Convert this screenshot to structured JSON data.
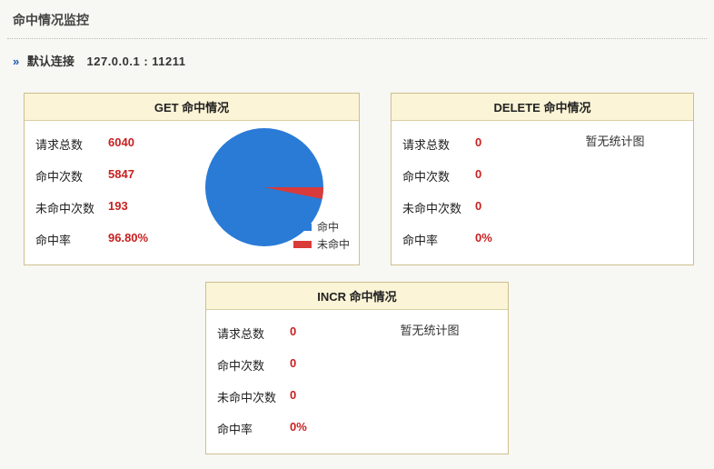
{
  "page_title": "命中情况监控",
  "connection": {
    "chevron": "»",
    "label": "默认连接",
    "address": "127.0.0.1 : 11211"
  },
  "metric_labels": {
    "requests": "请求总数",
    "hits": "命中次数",
    "misses": "未命中次数",
    "rate": "命中率"
  },
  "empty_chart_text": "暂无统计图",
  "panels": {
    "get": {
      "title": "GET 命中情况",
      "requests": "6040",
      "hits": "5847",
      "misses": "193",
      "rate": "96.80%",
      "chart": {
        "type": "pie",
        "size": 130,
        "hit_value": 5847,
        "miss_value": 193,
        "hit_color": "#2a7bd6",
        "miss_color": "#d93a3a",
        "background_color": "#ffffff",
        "legend": {
          "hit_label": "命中",
          "miss_label": "未命中"
        }
      }
    },
    "delete": {
      "title": "DELETE 命中情况",
      "requests": "0",
      "hits": "0",
      "misses": "0",
      "rate": "0%",
      "has_chart": false
    },
    "incr": {
      "title": "INCR 命中情况",
      "requests": "0",
      "hits": "0",
      "misses": "0",
      "rate": "0%",
      "has_chart": false
    }
  },
  "colors": {
    "panel_border": "#cdbf8f",
    "panel_head_bg": "#fbf4d6",
    "value_color": "#c91f1f",
    "page_bg": "#f7f7f3"
  }
}
